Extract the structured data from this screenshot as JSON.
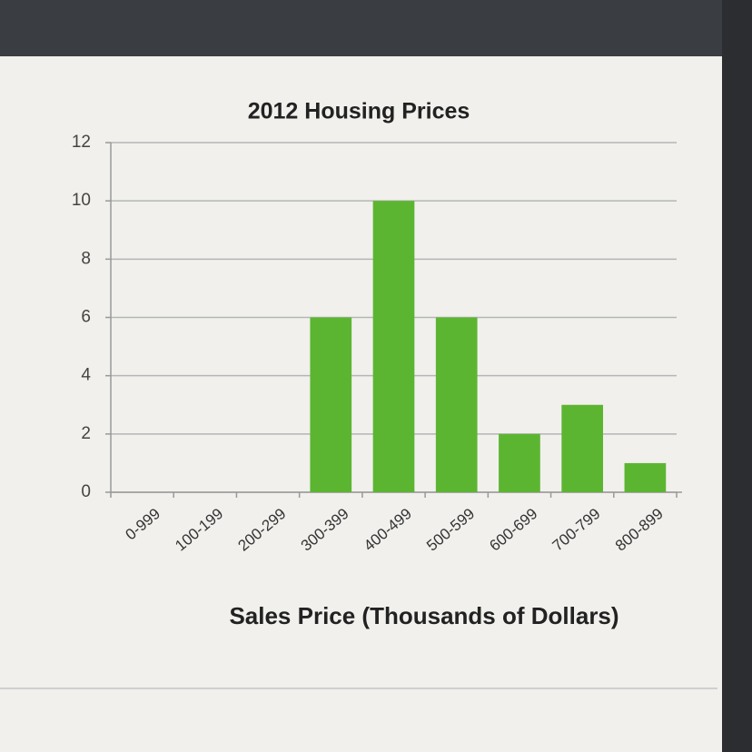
{
  "chart_data": {
    "type": "bar",
    "title": "2012 Housing Prices",
    "x_label": "Sales Price (Thousands of Dollars)",
    "categories": [
      "0-999",
      "100-199",
      "200-299",
      "300-399",
      "400-499",
      "500-599",
      "600-699",
      "700-799",
      "800-899"
    ],
    "values": [
      0,
      0,
      0,
      6,
      10,
      6,
      2,
      3,
      1
    ],
    "color": "#5cb531",
    "ylim": [
      0,
      12
    ],
    "yticks": [
      0,
      2,
      4,
      6,
      8,
      10,
      12
    ],
    "grid": true
  }
}
